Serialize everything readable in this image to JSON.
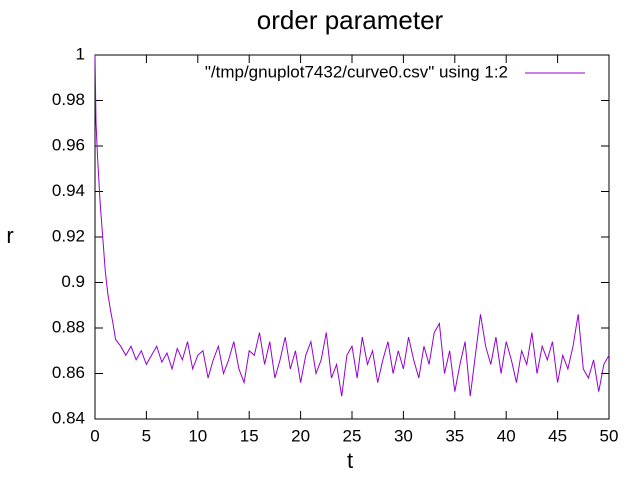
{
  "chart_data": {
    "type": "line",
    "title": "order parameter",
    "x_label": "t",
    "y_label": "r",
    "xlim": [
      0,
      50
    ],
    "xticks": [
      0,
      5,
      10,
      15,
      20,
      25,
      30,
      35,
      40,
      45,
      50
    ],
    "ylim": [
      0.84,
      1
    ],
    "yticks": [
      0.84,
      0.86,
      0.88,
      0.9,
      0.92,
      0.94,
      0.96,
      0.98,
      1
    ],
    "legend": "top-right",
    "series": [
      {
        "name": "\"/tmp/gnuplot7432/curve0.csv\" using 1:2",
        "color": "#9400d3",
        "x": [
          0,
          0.1,
          0.25,
          0.5,
          0.75,
          1,
          1.25,
          1.5,
          1.75,
          2,
          2.5,
          3,
          3.5,
          4,
          4.5,
          5,
          5.5,
          6,
          6.5,
          7,
          7.5,
          8,
          8.5,
          9,
          9.5,
          10,
          10.5,
          11,
          11.5,
          12,
          12.5,
          13,
          13.5,
          14,
          14.5,
          15,
          15.5,
          16,
          16.5,
          17,
          17.5,
          18,
          18.5,
          19,
          19.5,
          20,
          20.5,
          21,
          21.5,
          22,
          22.5,
          23,
          23.5,
          24,
          24.5,
          25,
          25.5,
          26,
          26.5,
          27,
          27.5,
          28,
          28.5,
          29,
          29.5,
          30,
          30.5,
          31,
          31.5,
          32,
          32.5,
          33,
          33.5,
          34,
          34.5,
          35,
          35.5,
          36,
          36.5,
          37,
          37.5,
          38,
          38.5,
          39,
          39.5,
          40,
          40.5,
          41,
          41.5,
          42,
          42.5,
          43,
          43.5,
          44,
          44.5,
          45,
          45.5,
          46,
          46.5,
          47,
          47.5,
          48,
          48.5,
          49,
          49.5,
          50
        ],
        "values": [
          1,
          0.97,
          0.955,
          0.935,
          0.92,
          0.905,
          0.895,
          0.888,
          0.882,
          0.875,
          0.872,
          0.868,
          0.872,
          0.866,
          0.87,
          0.864,
          0.868,
          0.872,
          0.865,
          0.869,
          0.862,
          0.871,
          0.866,
          0.874,
          0.862,
          0.868,
          0.87,
          0.858,
          0.866,
          0.872,
          0.86,
          0.866,
          0.874,
          0.862,
          0.856,
          0.87,
          0.868,
          0.878,
          0.864,
          0.874,
          0.858,
          0.866,
          0.876,
          0.862,
          0.87,
          0.856,
          0.868,
          0.874,
          0.86,
          0.866,
          0.878,
          0.858,
          0.864,
          0.85,
          0.868,
          0.872,
          0.858,
          0.876,
          0.864,
          0.87,
          0.856,
          0.866,
          0.874,
          0.86,
          0.87,
          0.862,
          0.876,
          0.866,
          0.858,
          0.872,
          0.864,
          0.878,
          0.882,
          0.86,
          0.87,
          0.852,
          0.864,
          0.874,
          0.85,
          0.868,
          0.886,
          0.872,
          0.864,
          0.876,
          0.86,
          0.874,
          0.866,
          0.856,
          0.87,
          0.864,
          0.878,
          0.86,
          0.872,
          0.866,
          0.874,
          0.856,
          0.868,
          0.862,
          0.872,
          0.886,
          0.862,
          0.858,
          0.866,
          0.852,
          0.864,
          0.868
        ]
      }
    ]
  }
}
